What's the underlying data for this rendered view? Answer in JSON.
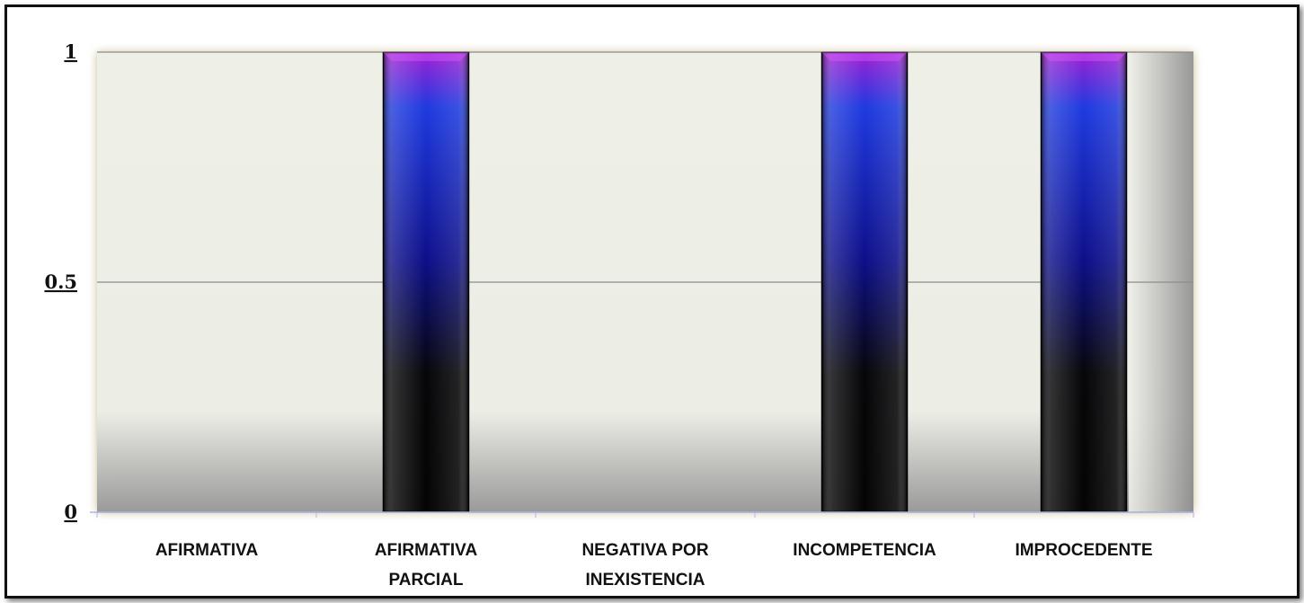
{
  "chart_data": {
    "type": "bar",
    "title": "",
    "xlabel": "",
    "ylabel": "",
    "categories": [
      [
        "AFIRMATIVA"
      ],
      [
        "AFIRMATIVA",
        "PARCIAL"
      ],
      [
        "NEGATIVA POR",
        "INEXISTENCIA"
      ],
      [
        "INCOMPETENCIA"
      ],
      [
        "IMPROCEDENTE"
      ]
    ],
    "values": [
      0,
      1,
      0,
      1,
      1
    ],
    "ylim": [
      0,
      1
    ],
    "yticks": [
      "0",
      "0.5",
      "1"
    ],
    "grid": true,
    "legend": "none",
    "colors": {
      "bar_top": "#9b1fd6",
      "bar_mid": "#1f2fd8",
      "bar_bottom": "#050505",
      "plot_bg": "#eef0e8",
      "gridline": "#8c8c8c"
    }
  }
}
